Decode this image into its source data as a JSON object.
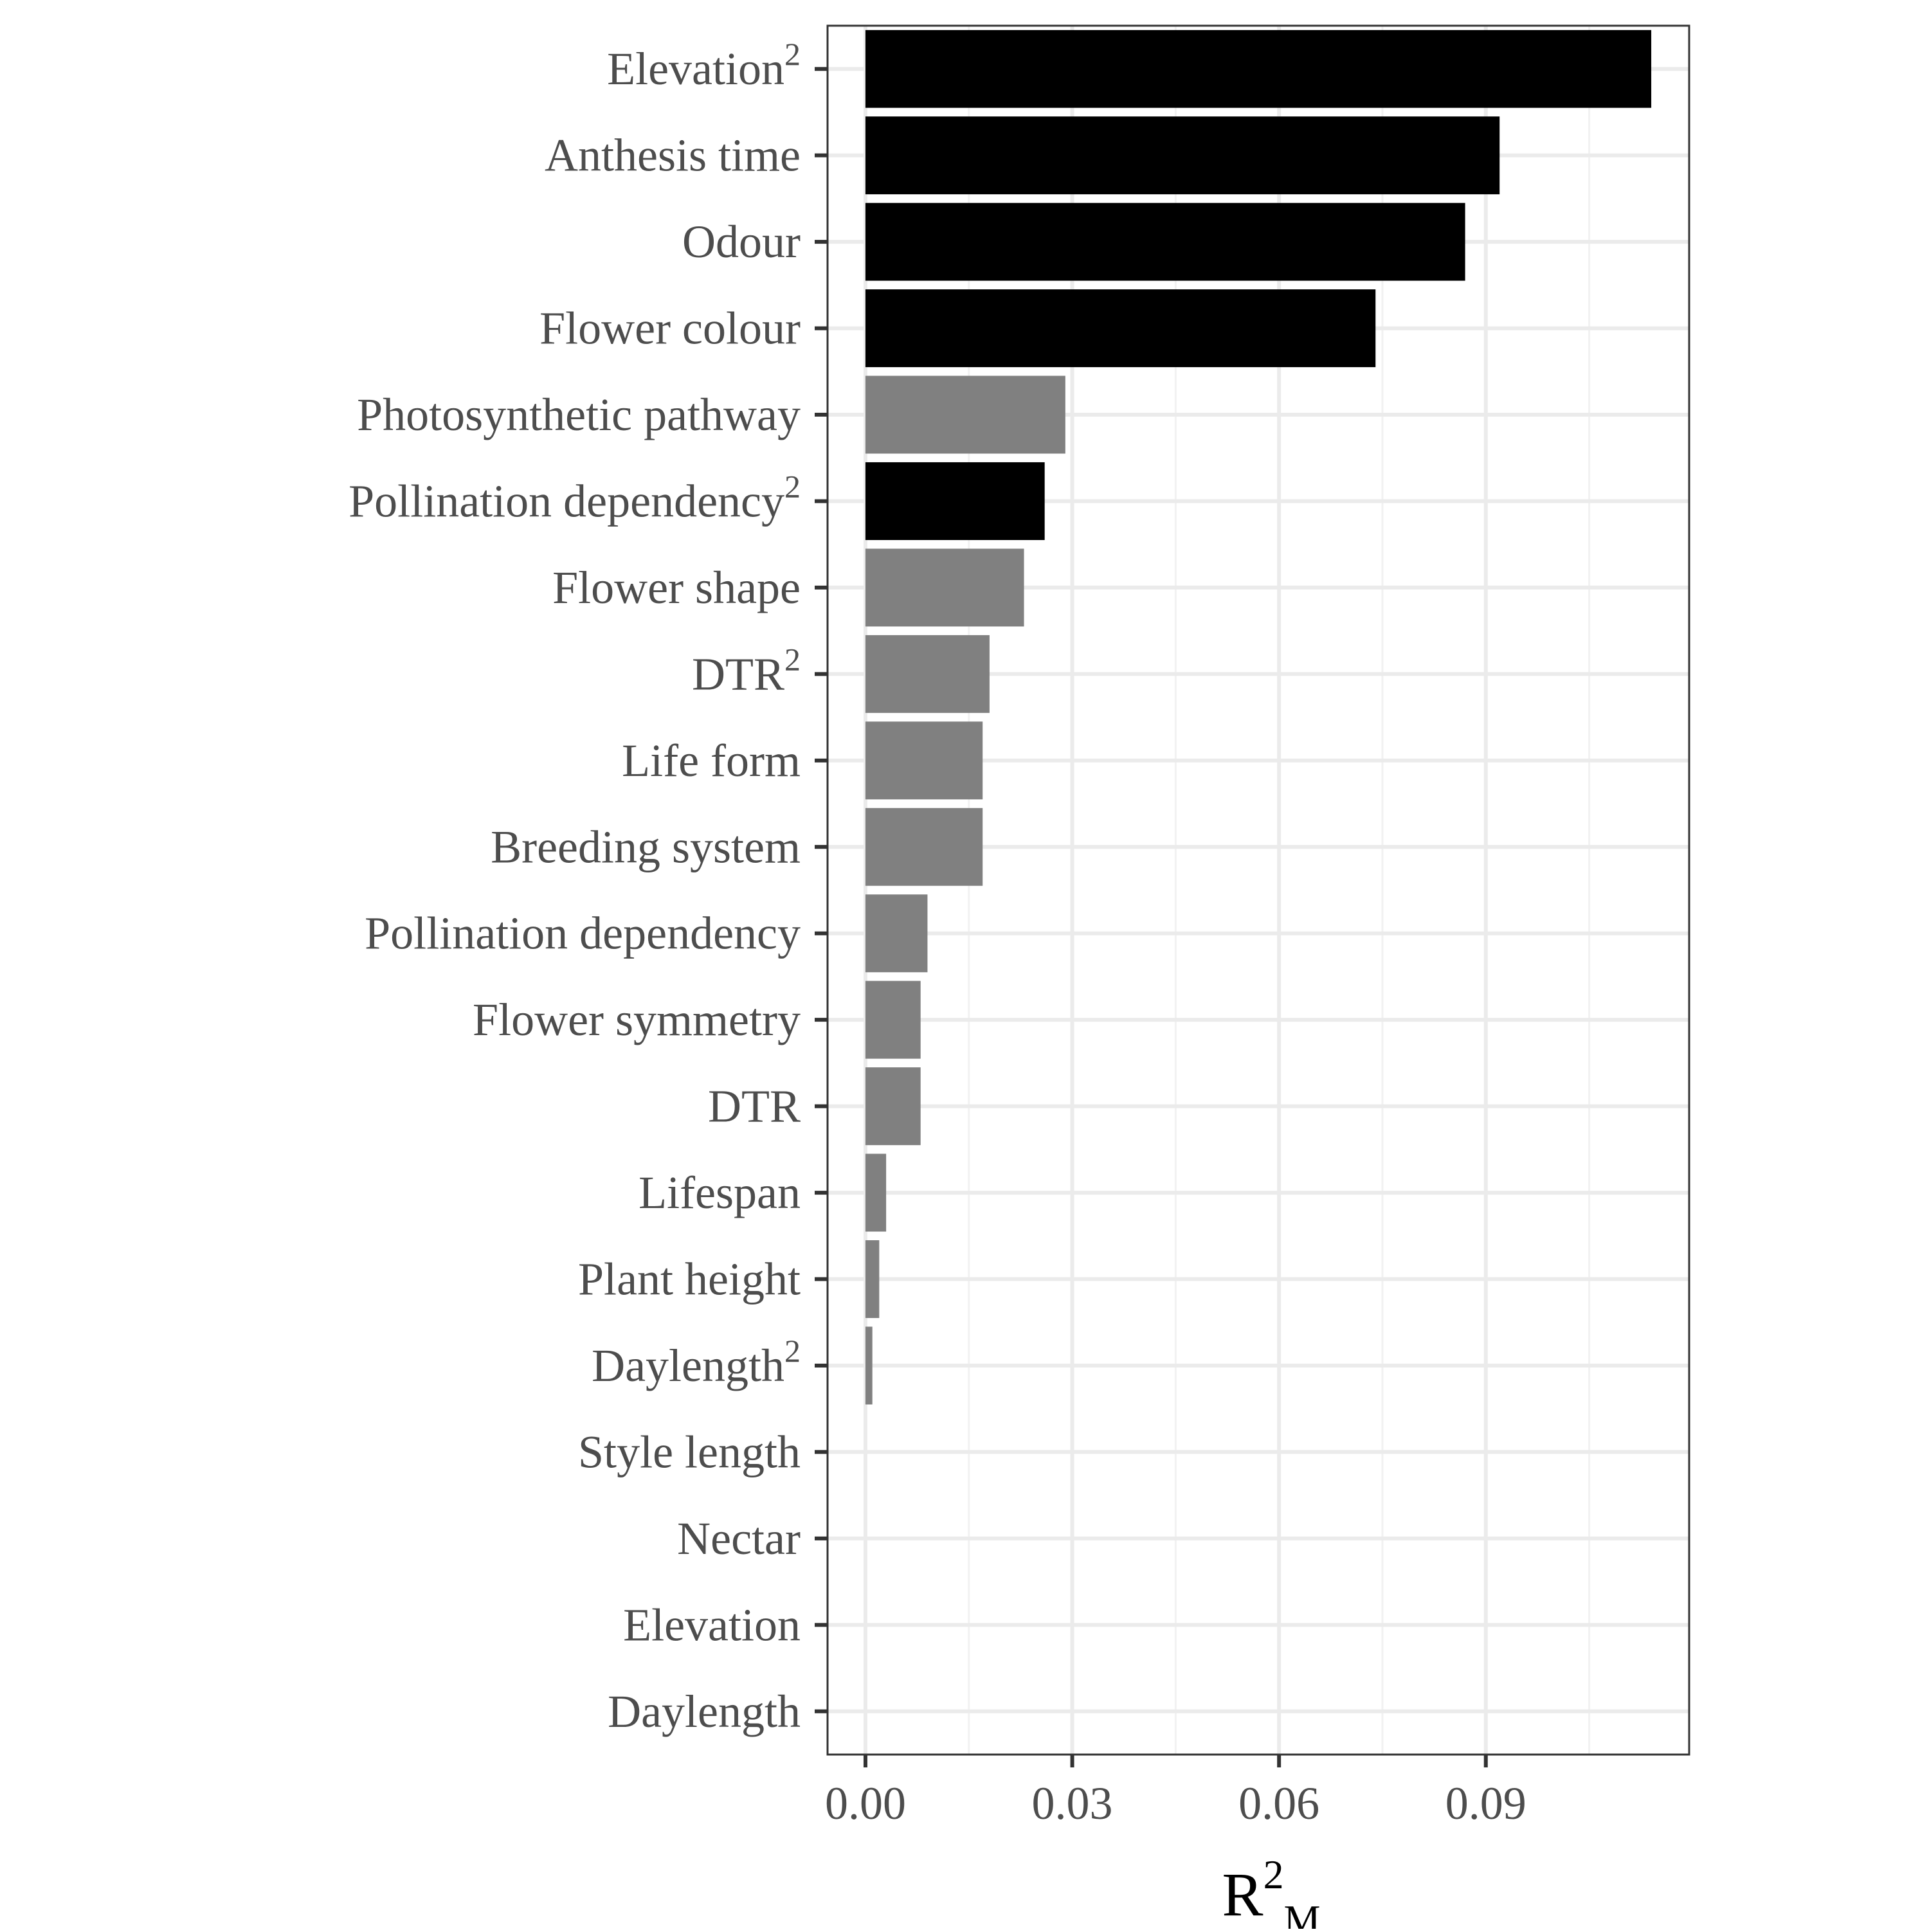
{
  "chart_data": {
    "type": "bar",
    "orientation": "horizontal",
    "categories": [
      {
        "label": "Elevation",
        "sup": "2",
        "value": 0.114,
        "significant": true
      },
      {
        "label": "Anthesis time",
        "sup": "",
        "value": 0.092,
        "significant": true
      },
      {
        "label": "Odour",
        "sup": "",
        "value": 0.087,
        "significant": true
      },
      {
        "label": "Flower colour",
        "sup": "",
        "value": 0.074,
        "significant": true
      },
      {
        "label": "Photosynthetic pathway",
        "sup": "",
        "value": 0.029,
        "significant": false
      },
      {
        "label": "Pollination dependency",
        "sup": "2",
        "value": 0.026,
        "significant": true
      },
      {
        "label": "Flower shape",
        "sup": "",
        "value": 0.023,
        "significant": false
      },
      {
        "label": "DTR",
        "sup": "2",
        "value": 0.018,
        "significant": false
      },
      {
        "label": "Life form",
        "sup": "",
        "value": 0.017,
        "significant": false
      },
      {
        "label": "Breeding system",
        "sup": "",
        "value": 0.017,
        "significant": false
      },
      {
        "label": "Pollination dependency",
        "sup": "",
        "value": 0.009,
        "significant": false
      },
      {
        "label": "Flower symmetry",
        "sup": "",
        "value": 0.008,
        "significant": false
      },
      {
        "label": "DTR",
        "sup": "",
        "value": 0.008,
        "significant": false
      },
      {
        "label": "Lifespan",
        "sup": "",
        "value": 0.003,
        "significant": false
      },
      {
        "label": "Plant height",
        "sup": "",
        "value": 0.002,
        "significant": false
      },
      {
        "label": "Daylength",
        "sup": "2",
        "value": 0.001,
        "significant": false
      },
      {
        "label": "Style length",
        "sup": "",
        "value": 0.0,
        "significant": false
      },
      {
        "label": "Nectar",
        "sup": "",
        "value": 0.0,
        "significant": false
      },
      {
        "label": "Elevation",
        "sup": "",
        "value": 0.0,
        "significant": false
      },
      {
        "label": "Daylength",
        "sup": "",
        "value": 0.0,
        "significant": false
      }
    ],
    "xlim": [
      -0.0055,
      0.1195
    ],
    "xticks": [
      0.0,
      0.03,
      0.06,
      0.09
    ],
    "xtick_labels": [
      "0.00",
      "0.03",
      "0.06",
      "0.09"
    ],
    "xlabel": {
      "base": "R",
      "sup": "2",
      "sub": "M"
    },
    "ylabel": "",
    "title": "",
    "grid": true,
    "colors": {
      "significant": "#000000",
      "nonsignificant": "#808080",
      "grid_major": "#ebebeb",
      "grid_minor": "#f2f2f2",
      "panel_border": "#333333",
      "tick_text": "#4d4d4d"
    }
  }
}
